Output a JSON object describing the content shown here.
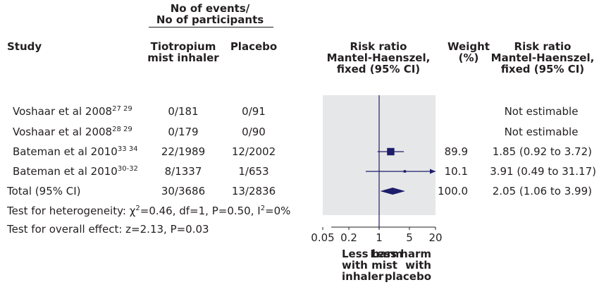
{
  "header": {
    "events_group": [
      "No of events/",
      "No of participants"
    ],
    "study": "Study",
    "tiotropium": [
      "Tiotropium",
      "mist inhaler"
    ],
    "placebo": "Placebo",
    "rr_plot": [
      "Risk ratio",
      "Mantel-Haenszel,",
      "fixed (95% CI)"
    ],
    "weight": [
      "Weight",
      "(%)"
    ],
    "rr_text": [
      "Risk ratio",
      "Mantel-Haenszel,",
      "fixed (95% CI)"
    ]
  },
  "rows": [
    {
      "study": "Voshaar et al 2008",
      "refs": "27 29",
      "tiotropium": "0/181",
      "placebo": "0/91",
      "weight": "",
      "rr_text": "Not estimable"
    },
    {
      "study": "Voshaar et al 2008",
      "refs": "28 29",
      "tiotropium": "0/179",
      "placebo": "0/90",
      "weight": "",
      "rr_text": "Not estimable"
    },
    {
      "study": "Bateman et al 2010",
      "refs": "33 34",
      "tiotropium": "22/1989",
      "placebo": "12/2002",
      "weight": "89.9",
      "rr_text": "1.85 (0.92 to 3.72)"
    },
    {
      "study": "Bateman et al 2010",
      "refs": "30-32",
      "tiotropium": "8/1337",
      "placebo": "1/653",
      "weight": "10.1",
      "rr_text": "3.91 (0.49 to 31.17)"
    }
  ],
  "total": {
    "label": "Total (95% CI)",
    "tiotropium": "30/3686",
    "placebo": "13/2836",
    "weight": "100.0",
    "rr_text": "2.05 (1.06 to 3.99)"
  },
  "heterogeneity": {
    "prefix": "Test for heterogeneity: ",
    "chi": "χ",
    "chi_sup": "2",
    "mid": "=0.46, df=1, P=0.50, I",
    "i_sup": "2",
    "tail": "=0%"
  },
  "overall_effect": "Test for overall effect: z=2.13, P=0.03",
  "favours_left": [
    "Less harm",
    "with mist",
    "inhaler"
  ],
  "favours_right": [
    "Less harm",
    "with",
    "placebo"
  ],
  "colors": {
    "panel": "#e6e7e8",
    "marks": "#1d1d6b",
    "text": "#231f20"
  },
  "chart_data": {
    "type": "forest",
    "x_scale": "log",
    "xlim": [
      0.05,
      20
    ],
    "x_ticks": [
      "0.05",
      "0.2",
      "1",
      "5",
      "20"
    ],
    "reference_line": 1,
    "studies": [
      {
        "rr": null,
        "ci": null,
        "weight": null
      },
      {
        "rr": null,
        "ci": null,
        "weight": null
      },
      {
        "rr": 1.85,
        "ci": [
          0.92,
          3.72
        ],
        "weight": 89.9
      },
      {
        "rr": 3.91,
        "ci": [
          0.49,
          31.17
        ],
        "weight": 10.1
      }
    ],
    "pooled": {
      "rr": 2.05,
      "ci": [
        1.06,
        3.99
      ]
    }
  }
}
